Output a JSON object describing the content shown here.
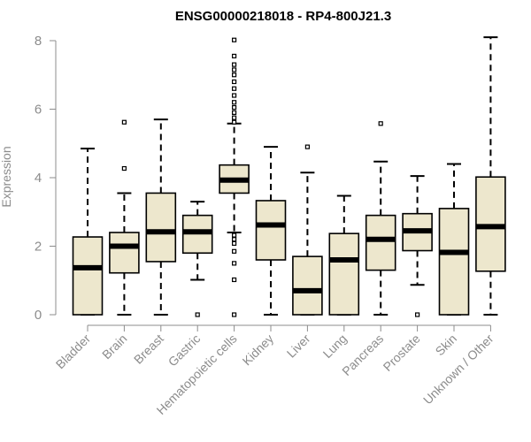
{
  "chart_data": {
    "type": "boxplot",
    "title": "ENSG00000218018 - RP4-800J21.3",
    "xlabel": "",
    "ylabel": "Expression",
    "ylim": [
      0,
      8
    ],
    "yticks": [
      0,
      2,
      4,
      6,
      8
    ],
    "colors": {
      "box_fill": "#ede7cd",
      "box_stroke": "#000000",
      "median": "#000000",
      "axis": "#8c8c8c"
    },
    "categories": [
      "Bladder",
      "Brain",
      "Breast",
      "Gastric",
      "Hematopoietic cells",
      "Kidney",
      "Liver",
      "Lung",
      "Pancreas",
      "Prostate",
      "Skin",
      "Unknown / Other"
    ],
    "boxes": [
      {
        "name": "Bladder",
        "whisker_low": 0,
        "q1": 0,
        "median": 1.37,
        "q3": 2.27,
        "whisker_high": 4.85,
        "outliers": []
      },
      {
        "name": "Brain",
        "whisker_low": 0,
        "q1": 1.22,
        "median": 2.0,
        "q3": 2.4,
        "whisker_high": 3.55,
        "outliers": [
          4.27,
          5.62
        ]
      },
      {
        "name": "Breast",
        "whisker_low": 0,
        "q1": 1.55,
        "median": 2.42,
        "q3": 3.55,
        "whisker_high": 5.7,
        "outliers": []
      },
      {
        "name": "Gastric",
        "whisker_low": 1.02,
        "q1": 1.8,
        "median": 2.42,
        "q3": 2.9,
        "whisker_high": 3.3,
        "outliers": [
          0
        ]
      },
      {
        "name": "Hematopoietic cells",
        "whisker_low": 2.4,
        "q1": 3.55,
        "median": 3.93,
        "q3": 4.37,
        "whisker_high": 5.58,
        "outliers": [
          0,
          1.02,
          1.5,
          1.85,
          2.08,
          2.2,
          2.32,
          5.62,
          5.75,
          5.9,
          6.05,
          6.2,
          6.4,
          6.6,
          6.8,
          7.0,
          7.15,
          7.3,
          7.55,
          8.02
        ]
      },
      {
        "name": "Kidney",
        "whisker_low": 0,
        "q1": 1.6,
        "median": 2.62,
        "q3": 3.33,
        "whisker_high": 4.9,
        "outliers": []
      },
      {
        "name": "Liver",
        "whisker_low": 0,
        "q1": 0,
        "median": 0.7,
        "q3": 1.7,
        "whisker_high": 4.15,
        "outliers": [
          4.9
        ]
      },
      {
        "name": "Lung",
        "whisker_low": 0,
        "q1": 0,
        "median": 1.6,
        "q3": 2.37,
        "whisker_high": 3.47,
        "outliers": []
      },
      {
        "name": "Pancreas",
        "whisker_low": 0,
        "q1": 1.3,
        "median": 2.2,
        "q3": 2.9,
        "whisker_high": 4.47,
        "outliers": [
          5.58
        ]
      },
      {
        "name": "Prostate",
        "whisker_low": 0.87,
        "q1": 1.87,
        "median": 2.45,
        "q3": 2.95,
        "whisker_high": 4.05,
        "outliers": [
          0
        ]
      },
      {
        "name": "Skin",
        "whisker_low": 0,
        "q1": 0,
        "median": 1.82,
        "q3": 3.1,
        "whisker_high": 4.4,
        "outliers": []
      },
      {
        "name": "Unknown / Other",
        "whisker_low": 0,
        "q1": 1.27,
        "median": 2.57,
        "q3": 4.02,
        "whisker_high": 8.1,
        "outliers": []
      }
    ]
  }
}
